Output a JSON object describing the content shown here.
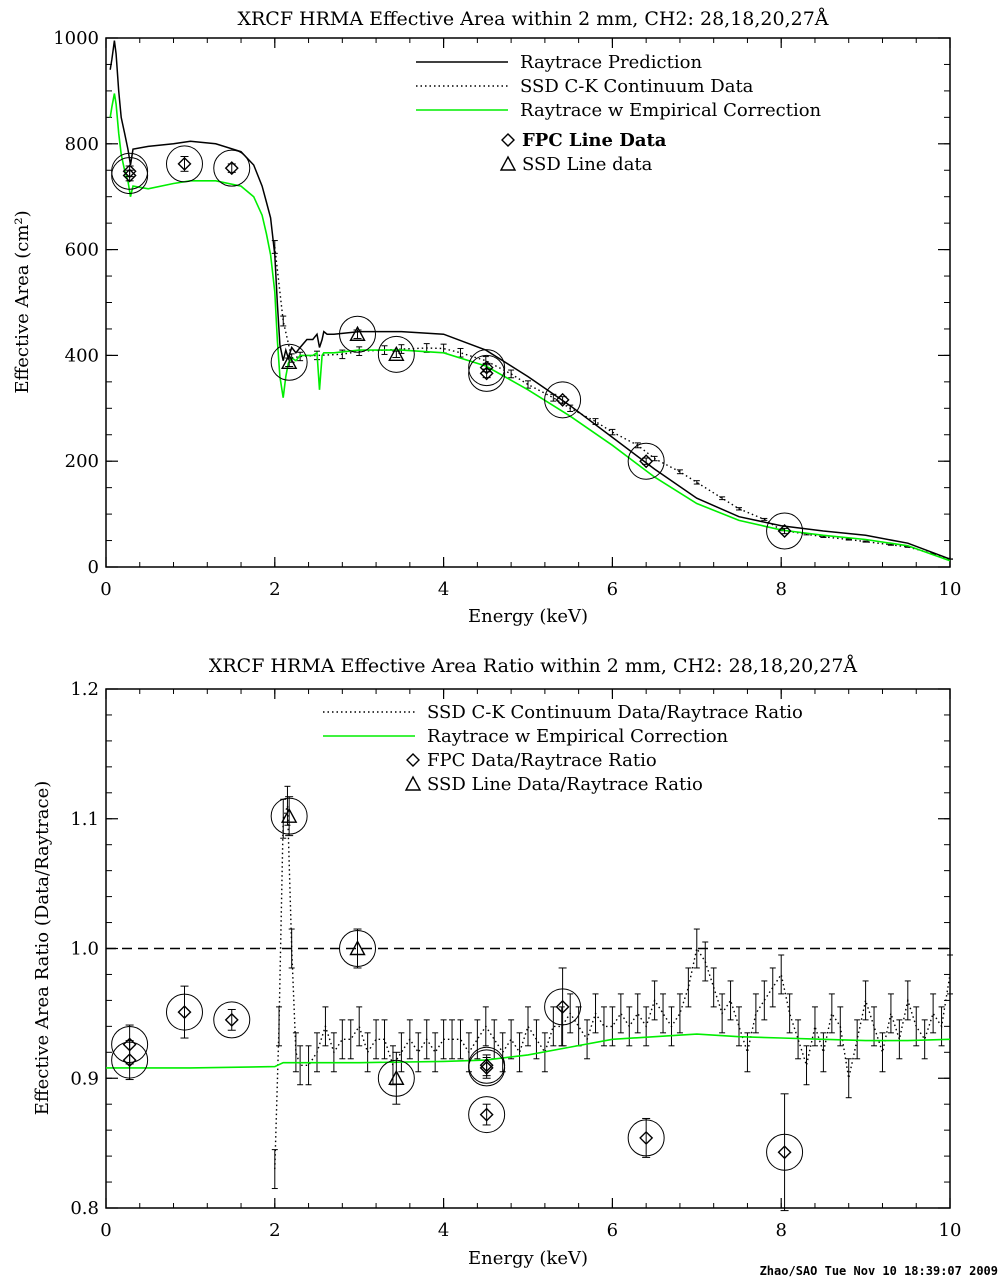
{
  "colors": {
    "background": "#ffffff",
    "axis": "#000000",
    "correction": "#00ee00"
  },
  "footer": "Zhao/SAO Tue Nov 10 18:39:07 2009",
  "chart_data": [
    {
      "type": "line",
      "title": "XRCF HRMA Effective Area within 2 mm, CH2: 28,18,20,27Å",
      "xlabel": "Energy (keV)",
      "ylabel": "Effective Area  (cm²)",
      "xlim": [
        0,
        10
      ],
      "ylim": [
        0,
        1000
      ],
      "xticks": [
        "0",
        "2",
        "4",
        "6",
        "8",
        "10"
      ],
      "yticks": [
        "0",
        "200",
        "400",
        "600",
        "800",
        "1000"
      ],
      "grid": false,
      "legend_position": "top-right",
      "legend": [
        {
          "label": "Raytrace Prediction",
          "style": "solid-black"
        },
        {
          "label": "SSD C-K Continuum Data",
          "style": "dotted-black"
        },
        {
          "label": "Raytrace w Empirical Correction",
          "style": "solid-green"
        },
        {
          "label": "FPC Line Data",
          "style": "diamond"
        },
        {
          "label": "SSD Line data",
          "style": "triangle"
        }
      ],
      "series": [
        {
          "name": "Raytrace Prediction",
          "x": [
            0.05,
            0.07,
            0.1,
            0.12,
            0.15,
            0.18,
            0.22,
            0.26,
            0.29,
            0.32,
            0.5,
            0.8,
            1.0,
            1.3,
            1.6,
            1.75,
            1.85,
            1.9,
            1.95,
            2.0,
            2.03,
            2.06,
            2.1,
            2.13,
            2.16,
            2.2,
            2.25,
            2.3,
            2.38,
            2.45,
            2.5,
            2.53,
            2.56,
            2.58,
            2.62,
            2.7,
            3.0,
            3.5,
            4.0,
            4.5,
            5.0,
            5.5,
            6.0,
            6.5,
            7.0,
            7.5,
            8.0,
            8.5,
            9.0,
            9.5,
            10.0
          ],
          "y": [
            940,
            960,
            995,
            970,
            900,
            850,
            820,
            790,
            760,
            790,
            795,
            800,
            805,
            800,
            785,
            760,
            720,
            690,
            660,
            590,
            500,
            420,
            390,
            410,
            395,
            415,
            405,
            415,
            430,
            430,
            440,
            415,
            430,
            445,
            440,
            440,
            445,
            445,
            440,
            410,
            360,
            305,
            245,
            185,
            130,
            95,
            78,
            68,
            60,
            45,
            15
          ]
        },
        {
          "name": "SSD C-K Continuum Data",
          "x": [
            2.0,
            2.1,
            2.2,
            2.3,
            2.5,
            2.8,
            3.0,
            3.3,
            3.5,
            3.8,
            4.0,
            4.2,
            4.5,
            4.8,
            5.0,
            5.3,
            5.5,
            5.8,
            6.0,
            6.3,
            6.5,
            6.8,
            7.0,
            7.3,
            7.5,
            7.8,
            8.0,
            8.3,
            8.5,
            8.8,
            9.0,
            9.3,
            9.5,
            9.8,
            10.0
          ],
          "y": [
            605,
            465,
            395,
            398,
            400,
            402,
            408,
            410,
            412,
            414,
            413,
            405,
            390,
            365,
            345,
            320,
            300,
            275,
            255,
            230,
            205,
            180,
            160,
            130,
            110,
            90,
            70,
            62,
            57,
            52,
            48,
            42,
            38,
            25,
            15
          ]
        },
        {
          "name": "Raytrace w Empirical Correction",
          "x": [
            0.05,
            0.07,
            0.1,
            0.12,
            0.15,
            0.18,
            0.22,
            0.26,
            0.29,
            0.32,
            0.5,
            0.8,
            1.0,
            1.3,
            1.6,
            1.75,
            1.85,
            1.9,
            1.95,
            2.0,
            2.03,
            2.06,
            2.1,
            2.13,
            2.16,
            2.2,
            2.25,
            2.3,
            2.38,
            2.45,
            2.5,
            2.53,
            2.56,
            2.58,
            2.62,
            2.7,
            3.0,
            3.5,
            4.0,
            4.5,
            5.0,
            5.5,
            6.0,
            6.5,
            7.0,
            7.5,
            8.0,
            8.5,
            9.0,
            9.5,
            10.0
          ],
          "y": [
            850,
            870,
            895,
            875,
            820,
            780,
            750,
            730,
            700,
            720,
            715,
            725,
            730,
            730,
            720,
            700,
            665,
            630,
            590,
            520,
            430,
            360,
            320,
            360,
            385,
            395,
            390,
            400,
            400,
            400,
            405,
            335,
            400,
            405,
            405,
            405,
            410,
            410,
            405,
            380,
            335,
            285,
            230,
            170,
            120,
            88,
            70,
            60,
            52,
            40,
            12
          ]
        }
      ],
      "fpc_line_data": [
        {
          "x": 0.28,
          "y": 748,
          "err": 10
        },
        {
          "x": 0.28,
          "y": 740,
          "err": 10
        },
        {
          "x": 0.93,
          "y": 762,
          "err": 14
        },
        {
          "x": 1.49,
          "y": 754,
          "err": 8
        },
        {
          "x": 4.51,
          "y": 377,
          "err": 8
        },
        {
          "x": 4.51,
          "y": 366,
          "err": 8
        },
        {
          "x": 5.41,
          "y": 316,
          "err": 6
        },
        {
          "x": 6.4,
          "y": 200,
          "err": 6
        },
        {
          "x": 8.04,
          "y": 68,
          "err": 5
        }
      ],
      "ssd_line_data": [
        {
          "x": 2.17,
          "y": 387,
          "err": 8
        },
        {
          "x": 2.98,
          "y": 440,
          "err": 8
        },
        {
          "x": 3.44,
          "y": 402,
          "err": 6
        }
      ]
    },
    {
      "type": "line",
      "title": "XRCF HRMA Effective Area Ratio within 2 mm, CH2: 28,18,20,27Å",
      "xlabel": "Energy (keV)",
      "ylabel": "Effective Area Ratio (Data/Raytrace)",
      "xlim": [
        0,
        10
      ],
      "ylim": [
        0.8,
        1.2
      ],
      "xticks": [
        "0",
        "2",
        "4",
        "6",
        "8",
        "10"
      ],
      "yticks": [
        "0.8",
        "0.9",
        "1.0",
        "1.1",
        "1.2"
      ],
      "grid": false,
      "legend_position": "top-right",
      "reference_line": 1.0,
      "legend": [
        {
          "label": "SSD C-K Continuum Data/Raytrace Ratio",
          "style": "dotted-black"
        },
        {
          "label": "Raytrace w Empirical Correction",
          "style": "solid-green"
        },
        {
          "label": "FPC Data/Raytrace Ratio",
          "style": "diamond"
        },
        {
          "label": "SSD Line Data/Raytrace Ratio",
          "style": "triangle"
        }
      ],
      "series": [
        {
          "name": "SSD C-K Continuum Data/Raytrace Ratio",
          "x": [
            2.0,
            2.05,
            2.1,
            2.15,
            2.2,
            2.25,
            2.3,
            2.4,
            2.5,
            2.6,
            2.7,
            2.8,
            2.9,
            3.0,
            3.1,
            3.2,
            3.3,
            3.4,
            3.5,
            3.6,
            3.7,
            3.8,
            3.9,
            4.0,
            4.1,
            4.2,
            4.3,
            4.4,
            4.5,
            4.6,
            4.7,
            4.8,
            4.9,
            5.0,
            5.1,
            5.2,
            5.3,
            5.4,
            5.5,
            5.6,
            5.7,
            5.8,
            5.9,
            6.0,
            6.1,
            6.2,
            6.3,
            6.4,
            6.5,
            6.6,
            6.7,
            6.8,
            6.9,
            7.0,
            7.1,
            7.2,
            7.3,
            7.4,
            7.5,
            7.6,
            7.7,
            7.8,
            7.9,
            8.0,
            8.1,
            8.2,
            8.3,
            8.4,
            8.5,
            8.6,
            8.7,
            8.8,
            8.9,
            9.0,
            9.1,
            9.2,
            9.3,
            9.4,
            9.5,
            9.6,
            9.7,
            9.8,
            9.9,
            10.0
          ],
          "y": [
            0.83,
            0.94,
            1.1,
            1.11,
            1.0,
            0.92,
            0.91,
            0.91,
            0.92,
            0.94,
            0.92,
            0.93,
            0.93,
            0.94,
            0.92,
            0.93,
            0.93,
            0.91,
            0.92,
            0.93,
            0.92,
            0.93,
            0.92,
            0.93,
            0.93,
            0.93,
            0.92,
            0.93,
            0.94,
            0.93,
            0.92,
            0.93,
            0.92,
            0.94,
            0.93,
            0.92,
            0.94,
            0.94,
            0.95,
            0.94,
            0.93,
            0.95,
            0.94,
            0.94,
            0.95,
            0.94,
            0.95,
            0.94,
            0.96,
            0.95,
            0.94,
            0.95,
            0.97,
            1.0,
            0.99,
            0.97,
            0.95,
            0.96,
            0.94,
            0.92,
            0.95,
            0.96,
            0.97,
            0.98,
            0.95,
            0.93,
            0.91,
            0.94,
            0.92,
            0.95,
            0.94,
            0.9,
            0.93,
            0.96,
            0.94,
            0.92,
            0.95,
            0.93,
            0.96,
            0.94,
            0.93,
            0.95,
            0.94,
            0.98
          ],
          "err": 0.015
        },
        {
          "name": "Raytrace w Empirical Correction",
          "x": [
            0,
            1.0,
            2.0,
            2.1,
            3.0,
            4.0,
            4.5,
            5.0,
            5.5,
            6.0,
            6.5,
            7.0,
            7.5,
            8.0,
            8.5,
            9.0,
            9.5,
            10.0
          ],
          "y": [
            0.908,
            0.908,
            0.909,
            0.912,
            0.912,
            0.913,
            0.914,
            0.918,
            0.924,
            0.93,
            0.932,
            0.934,
            0.932,
            0.931,
            0.93,
            0.929,
            0.929,
            0.93
          ]
        }
      ],
      "fpc_line_data": [
        {
          "x": 0.28,
          "y": 0.926,
          "err": 0.015
        },
        {
          "x": 0.28,
          "y": 0.914,
          "err": 0.015
        },
        {
          "x": 0.93,
          "y": 0.951,
          "err": 0.02
        },
        {
          "x": 1.49,
          "y": 0.945,
          "err": 0.008
        },
        {
          "x": 4.51,
          "y": 0.91,
          "err": 0.008
        },
        {
          "x": 4.51,
          "y": 0.908,
          "err": 0.008
        },
        {
          "x": 4.51,
          "y": 0.872,
          "err": 0.008
        },
        {
          "x": 5.41,
          "y": 0.955,
          "err": 0.03
        },
        {
          "x": 6.4,
          "y": 0.854,
          "err": 0.015
        },
        {
          "x": 8.04,
          "y": 0.843,
          "err": 0.045
        }
      ],
      "ssd_line_data": [
        {
          "x": 2.17,
          "y": 1.102,
          "err": 0.015
        },
        {
          "x": 2.98,
          "y": 1.0,
          "err": 0.015
        },
        {
          "x": 3.44,
          "y": 0.9,
          "err": 0.02
        }
      ]
    }
  ]
}
